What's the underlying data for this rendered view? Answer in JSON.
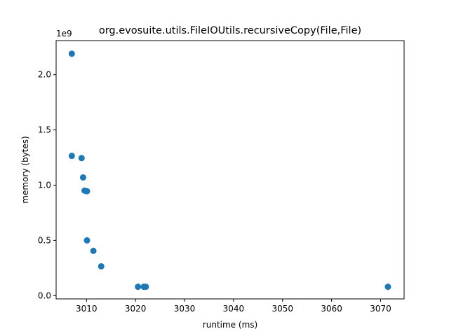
{
  "chart_data": {
    "type": "scatter",
    "title": "org.evosuite.utils.FileIOUtils.recursiveCopy(File,File)",
    "xlabel": "runtime (ms)",
    "ylabel": "memory (bytes)",
    "y_offset_label": "1e9",
    "xlim": [
      3003.8,
      3074.8
    ],
    "ylim": [
      -0.0299,
      2.3086
    ],
    "x_ticks": [
      3010,
      3020,
      3030,
      3040,
      3050,
      3060,
      3070
    ],
    "x_tick_labels": [
      "3010",
      "3020",
      "3030",
      "3040",
      "3050",
      "3060",
      "3070"
    ],
    "y_ticks": [
      0.0,
      0.5,
      1.0,
      1.5,
      2.0
    ],
    "y_tick_labels": [
      "0.0",
      "0.5",
      "1.0",
      "1.5",
      "2.0"
    ],
    "y_unit_multiplier": 1000000000,
    "grid": false,
    "point_color": "#1f77b4",
    "series": [
      {
        "points": [
          {
            "x": 3007.0,
            "y": 2.19
          },
          {
            "x": 3007.0,
            "y": 1.265
          },
          {
            "x": 3009.0,
            "y": 1.245
          },
          {
            "x": 3009.3,
            "y": 1.07
          },
          {
            "x": 3009.6,
            "y": 0.95
          },
          {
            "x": 3010.1,
            "y": 0.945
          },
          {
            "x": 3010.1,
            "y": 0.5
          },
          {
            "x": 3011.4,
            "y": 0.405
          },
          {
            "x": 3013.0,
            "y": 0.265
          },
          {
            "x": 3020.5,
            "y": 0.08
          },
          {
            "x": 3021.7,
            "y": 0.08
          },
          {
            "x": 3022.1,
            "y": 0.08
          },
          {
            "x": 3071.5,
            "y": 0.08
          }
        ]
      }
    ]
  }
}
